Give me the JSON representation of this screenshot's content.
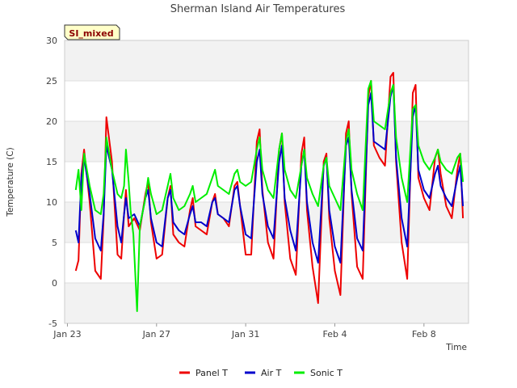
{
  "chart_data": {
    "type": "line",
    "title": "Sherman Island Air Temperatures",
    "xlabel": "Time",
    "ylabel": "Temperature (C)",
    "badge": "SI_mixed",
    "ylim": [
      -5,
      30
    ],
    "yticks": [
      -5,
      0,
      5,
      10,
      15,
      20,
      25,
      30
    ],
    "xlim": [
      "2024-01-22T21:00",
      "2024-02-10T00:00"
    ],
    "xticks": [
      {
        "value": "2024-01-23T00:00",
        "label": "Jan 23"
      },
      {
        "value": "2024-01-27T00:00",
        "label": "Jan 27"
      },
      {
        "value": "2024-01-31T00:00",
        "label": "Jan 31"
      },
      {
        "value": "2024-02-04T00:00",
        "label": "Feb 4"
      },
      {
        "value": "2024-02-08T00:00",
        "label": "Feb 8"
      }
    ],
    "grid": "horizontal-bands",
    "legend_position": "bottom-center",
    "series": [
      {
        "name": "Panel T",
        "color": "#ee0000",
        "x": [
          "2024-01-23T09:00",
          "2024-01-23T12:00",
          "2024-01-23T15:00",
          "2024-01-23T18:00",
          "2024-01-24T00:00",
          "2024-01-24T06:00",
          "2024-01-24T12:00",
          "2024-01-24T15:00",
          "2024-01-24T18:00",
          "2024-01-25T00:00",
          "2024-01-25T06:00",
          "2024-01-25T10:00",
          "2024-01-25T13:00",
          "2024-01-25T15:00",
          "2024-01-25T18:00",
          "2024-01-26T00:00",
          "2024-01-26T06:00",
          "2024-01-26T12:00",
          "2024-01-26T15:00",
          "2024-01-26T18:00",
          "2024-01-27T00:00",
          "2024-01-27T06:00",
          "2024-01-27T12:00",
          "2024-01-27T15:00",
          "2024-01-27T18:00",
          "2024-01-28T00:00",
          "2024-01-28T06:00",
          "2024-01-28T12:00",
          "2024-01-28T15:00",
          "2024-01-28T18:00",
          "2024-01-29T00:00",
          "2024-01-29T06:00",
          "2024-01-29T12:00",
          "2024-01-29T15:00",
          "2024-01-29T18:00",
          "2024-01-30T00:00",
          "2024-01-30T06:00",
          "2024-01-30T12:00",
          "2024-01-30T15:00",
          "2024-01-30T18:00",
          "2024-01-31T00:00",
          "2024-01-31T06:00",
          "2024-01-31T12:00",
          "2024-01-31T15:00",
          "2024-01-31T18:00",
          "2024-02-01T00:00",
          "2024-02-01T06:00",
          "2024-02-01T12:00",
          "2024-02-01T15:00",
          "2024-02-01T18:00",
          "2024-02-02T00:00",
          "2024-02-02T06:00",
          "2024-02-02T12:00",
          "2024-02-02T15:00",
          "2024-02-02T18:00",
          "2024-02-03T00:00",
          "2024-02-03T06:00",
          "2024-02-03T12:00",
          "2024-02-03T15:00",
          "2024-02-03T18:00",
          "2024-02-04T00:00",
          "2024-02-04T06:00",
          "2024-02-04T12:00",
          "2024-02-04T15:00",
          "2024-02-04T18:00",
          "2024-02-05T00:00",
          "2024-02-05T06:00",
          "2024-02-05T12:00",
          "2024-02-05T15:00",
          "2024-02-05T18:00",
          "2024-02-06T00:00",
          "2024-02-06T06:00",
          "2024-02-06T12:00",
          "2024-02-06T15:00",
          "2024-02-06T18:00",
          "2024-02-07T00:00",
          "2024-02-07T06:00",
          "2024-02-07T12:00",
          "2024-02-07T15:00",
          "2024-02-07T18:00",
          "2024-02-08T00:00",
          "2024-02-08T06:00",
          "2024-02-08T12:00",
          "2024-02-08T15:00",
          "2024-02-08T18:00",
          "2024-02-09T00:00",
          "2024-02-09T06:00",
          "2024-02-09T12:00",
          "2024-02-09T15:00",
          "2024-02-09T18:00"
        ],
        "y": [
          1.5,
          2.8,
          13.5,
          16.5,
          10.0,
          1.5,
          0.5,
          8.0,
          20.5,
          15.0,
          3.5,
          3.0,
          8.5,
          11.5,
          7.0,
          8.0,
          6.5,
          11.0,
          12.5,
          7.5,
          3.0,
          3.5,
          10.5,
          12.0,
          6.0,
          5.0,
          4.5,
          9.0,
          10.5,
          7.0,
          6.5,
          6.0,
          10.0,
          11.0,
          8.5,
          8.0,
          7.0,
          12.0,
          12.5,
          9.5,
          3.5,
          3.5,
          17.5,
          19.0,
          11.5,
          5.0,
          3.0,
          16.5,
          18.5,
          10.0,
          3.0,
          1.0,
          16.0,
          18.0,
          9.0,
          2.0,
          -2.5,
          15.0,
          16.0,
          8.0,
          1.5,
          -1.5,
          18.5,
          20.0,
          11.0,
          2.0,
          0.5,
          23.0,
          25.0,
          17.0,
          15.5,
          14.5,
          25.5,
          26.0,
          15.0,
          5.0,
          0.5,
          23.5,
          24.5,
          13.0,
          10.5,
          9.0,
          15.5,
          16.5,
          13.5,
          9.5,
          8.0,
          14.0,
          16.0,
          8.0
        ]
      },
      {
        "name": "Air T",
        "color": "#0000cc",
        "x": [
          "2024-01-23T09:00",
          "2024-01-23T12:00",
          "2024-01-23T15:00",
          "2024-01-23T18:00",
          "2024-01-24T00:00",
          "2024-01-24T06:00",
          "2024-01-24T12:00",
          "2024-01-24T15:00",
          "2024-01-24T18:00",
          "2024-01-25T00:00",
          "2024-01-25T06:00",
          "2024-01-25T10:00",
          "2024-01-25T13:00",
          "2024-01-25T15:00",
          "2024-01-25T18:00",
          "2024-01-26T00:00",
          "2024-01-26T06:00",
          "2024-01-26T12:00",
          "2024-01-26T15:00",
          "2024-01-26T18:00",
          "2024-01-27T00:00",
          "2024-01-27T06:00",
          "2024-01-27T12:00",
          "2024-01-27T15:00",
          "2024-01-27T18:00",
          "2024-01-28T00:00",
          "2024-01-28T06:00",
          "2024-01-28T12:00",
          "2024-01-28T15:00",
          "2024-01-28T18:00",
          "2024-01-29T00:00",
          "2024-01-29T06:00",
          "2024-01-29T12:00",
          "2024-01-29T15:00",
          "2024-01-29T18:00",
          "2024-01-30T00:00",
          "2024-01-30T06:00",
          "2024-01-30T12:00",
          "2024-01-30T15:00",
          "2024-01-30T18:00",
          "2024-01-31T00:00",
          "2024-01-31T06:00",
          "2024-01-31T12:00",
          "2024-01-31T15:00",
          "2024-01-31T18:00",
          "2024-02-01T00:00",
          "2024-02-01T06:00",
          "2024-02-01T12:00",
          "2024-02-01T15:00",
          "2024-02-01T18:00",
          "2024-02-02T00:00",
          "2024-02-02T06:00",
          "2024-02-02T12:00",
          "2024-02-02T15:00",
          "2024-02-02T18:00",
          "2024-02-03T00:00",
          "2024-02-03T06:00",
          "2024-02-03T12:00",
          "2024-02-03T15:00",
          "2024-02-03T18:00",
          "2024-02-04T00:00",
          "2024-02-04T06:00",
          "2024-02-04T12:00",
          "2024-02-04T15:00",
          "2024-02-04T18:00",
          "2024-02-05T00:00",
          "2024-02-05T06:00",
          "2024-02-05T12:00",
          "2024-02-05T15:00",
          "2024-02-05T18:00",
          "2024-02-06T00:00",
          "2024-02-06T06:00",
          "2024-02-06T12:00",
          "2024-02-06T15:00",
          "2024-02-06T18:00",
          "2024-02-07T00:00",
          "2024-02-07T06:00",
          "2024-02-07T12:00",
          "2024-02-07T15:00",
          "2024-02-07T18:00",
          "2024-02-08T00:00",
          "2024-02-08T06:00",
          "2024-02-08T12:00",
          "2024-02-08T15:00",
          "2024-02-08T18:00",
          "2024-02-09T00:00",
          "2024-02-09T06:00",
          "2024-02-09T12:00",
          "2024-02-09T15:00",
          "2024-02-09T18:00"
        ],
        "y": [
          6.5,
          5.0,
          13.0,
          15.5,
          11.0,
          5.5,
          4.0,
          8.5,
          17.0,
          14.0,
          7.0,
          5.0,
          8.5,
          10.5,
          8.0,
          8.5,
          7.0,
          10.5,
          11.5,
          8.0,
          5.0,
          4.5,
          10.5,
          11.5,
          7.5,
          6.5,
          6.0,
          8.5,
          9.5,
          7.5,
          7.5,
          7.0,
          10.0,
          10.5,
          8.5,
          8.0,
          7.5,
          11.5,
          12.0,
          9.5,
          6.0,
          5.5,
          15.0,
          16.5,
          11.0,
          7.0,
          5.5,
          15.0,
          17.0,
          10.5,
          6.5,
          4.0,
          14.5,
          16.5,
          10.0,
          5.0,
          2.5,
          14.5,
          15.5,
          9.0,
          4.5,
          2.5,
          17.0,
          18.0,
          11.5,
          5.5,
          4.0,
          22.0,
          23.5,
          17.5,
          17.0,
          16.5,
          23.0,
          24.5,
          15.5,
          8.0,
          4.5,
          20.5,
          22.0,
          14.0,
          11.5,
          10.5,
          13.5,
          14.5,
          12.0,
          10.5,
          9.5,
          13.0,
          14.5,
          9.5
        ]
      },
      {
        "name": "Sonic T",
        "color": "#00ee00",
        "x": [
          "2024-01-23T09:00",
          "2024-01-23T12:00",
          "2024-01-23T15:00",
          "2024-01-23T18:00",
          "2024-01-24T00:00",
          "2024-01-24T06:00",
          "2024-01-24T12:00",
          "2024-01-24T15:00",
          "2024-01-24T18:00",
          "2024-01-25T00:00",
          "2024-01-25T06:00",
          "2024-01-25T10:00",
          "2024-01-25T13:00",
          "2024-01-25T15:00",
          "2024-01-25T18:00",
          "2024-01-25T20:00",
          "2024-01-25T23:00",
          "2024-01-26T03:00",
          "2024-01-26T06:00",
          "2024-01-26T12:00",
          "2024-01-26T15:00",
          "2024-01-26T18:00",
          "2024-01-27T00:00",
          "2024-01-27T06:00",
          "2024-01-27T12:00",
          "2024-01-27T15:00",
          "2024-01-27T18:00",
          "2024-01-28T00:00",
          "2024-01-28T06:00",
          "2024-01-28T12:00",
          "2024-01-28T15:00",
          "2024-01-28T18:00",
          "2024-01-29T00:00",
          "2024-01-29T06:00",
          "2024-01-29T12:00",
          "2024-01-29T15:00",
          "2024-01-29T18:00",
          "2024-01-30T00:00",
          "2024-01-30T06:00",
          "2024-01-30T12:00",
          "2024-01-30T15:00",
          "2024-01-30T18:00",
          "2024-01-31T00:00",
          "2024-01-31T06:00",
          "2024-01-31T12:00",
          "2024-01-31T15:00",
          "2024-01-31T18:00",
          "2024-02-01T00:00",
          "2024-02-01T06:00",
          "2024-02-01T12:00",
          "2024-02-01T15:00",
          "2024-02-01T18:00",
          "2024-02-02T00:00",
          "2024-02-02T06:00",
          "2024-02-02T12:00",
          "2024-02-02T15:00",
          "2024-02-02T18:00",
          "2024-02-03T00:00",
          "2024-02-03T06:00",
          "2024-02-03T12:00",
          "2024-02-03T15:00",
          "2024-02-03T18:00",
          "2024-02-04T00:00",
          "2024-02-04T06:00",
          "2024-02-04T12:00",
          "2024-02-04T15:00",
          "2024-02-04T18:00",
          "2024-02-05T00:00",
          "2024-02-05T06:00",
          "2024-02-05T12:00",
          "2024-02-05T15:00",
          "2024-02-05T18:00",
          "2024-02-06T00:00",
          "2024-02-06T06:00",
          "2024-02-06T12:00",
          "2024-02-06T15:00",
          "2024-02-06T18:00",
          "2024-02-07T00:00",
          "2024-02-07T06:00",
          "2024-02-07T12:00",
          "2024-02-07T15:00",
          "2024-02-07T18:00",
          "2024-02-08T00:00",
          "2024-02-08T06:00",
          "2024-02-08T12:00",
          "2024-02-08T15:00",
          "2024-02-08T18:00",
          "2024-02-09T00:00",
          "2024-02-09T06:00",
          "2024-02-09T12:00",
          "2024-02-09T15:00",
          "2024-02-09T18:00"
        ],
        "y": [
          11.5,
          14.0,
          9.0,
          16.0,
          12.0,
          9.0,
          8.5,
          11.0,
          18.0,
          14.0,
          11.0,
          10.5,
          12.0,
          16.5,
          12.5,
          9.0,
          6.0,
          -3.5,
          7.0,
          10.5,
          13.0,
          11.0,
          8.5,
          9.0,
          12.0,
          13.5,
          10.5,
          9.0,
          9.5,
          11.0,
          12.0,
          10.0,
          10.5,
          11.0,
          13.0,
          14.0,
          12.0,
          11.5,
          11.0,
          13.5,
          14.0,
          12.5,
          12.0,
          12.5,
          16.5,
          18.0,
          14.0,
          11.5,
          10.5,
          16.5,
          18.5,
          14.0,
          11.5,
          10.5,
          14.5,
          16.5,
          13.0,
          11.0,
          9.5,
          14.5,
          15.5,
          12.0,
          10.5,
          9.0,
          17.5,
          19.0,
          14.0,
          11.0,
          9.0,
          24.0,
          25.0,
          20.0,
          19.5,
          19.0,
          23.5,
          24.5,
          18.0,
          13.0,
          10.0,
          21.5,
          22.0,
          17.0,
          15.0,
          14.0,
          15.5,
          16.5,
          15.0,
          14.0,
          13.5,
          15.5,
          16.0,
          12.5
        ]
      }
    ]
  }
}
